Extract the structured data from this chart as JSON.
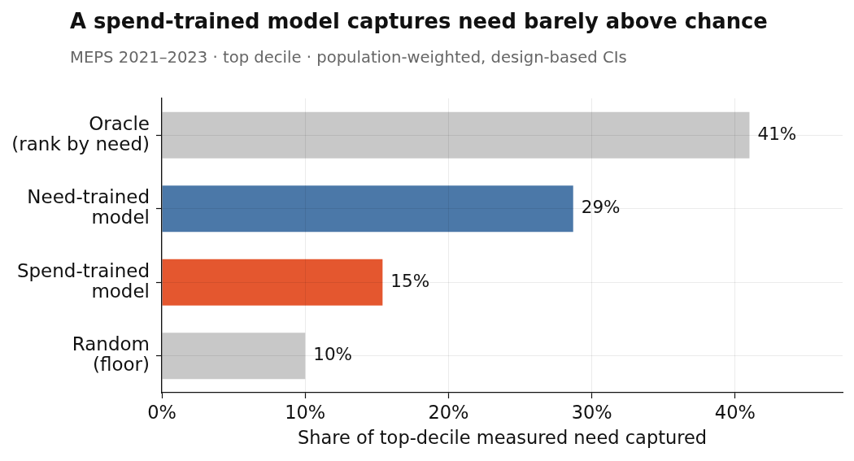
{
  "chart_data": {
    "type": "bar",
    "orientation": "horizontal",
    "title": "A spend-trained model captures need barely above chance",
    "subtitle": "MEPS 2021–2023 · top decile · population-weighted, design-based CIs",
    "xlabel": "Share of top-decile measured need captured",
    "categories": [
      "Oracle\n(rank by need)",
      "Need-trained\nmodel",
      "Spend-trained\nmodel",
      "Random\n(floor)"
    ],
    "values": [
      41,
      28.7,
      15.4,
      10
    ],
    "colors": [
      "#c8c8c8",
      "#4b78a8",
      "#e4572f",
      "#c8c8c8"
    ],
    "value_labels": [
      "41%",
      "29%",
      "15%",
      "10%"
    ],
    "xlim": [
      0,
      47.5
    ],
    "xticks": [
      {
        "value": 0,
        "label": "0%"
      },
      {
        "value": 10,
        "label": "10%"
      },
      {
        "value": 20,
        "label": "20%"
      },
      {
        "value": 30,
        "label": "30%"
      },
      {
        "value": 40,
        "label": "40%"
      }
    ],
    "grid": true
  }
}
